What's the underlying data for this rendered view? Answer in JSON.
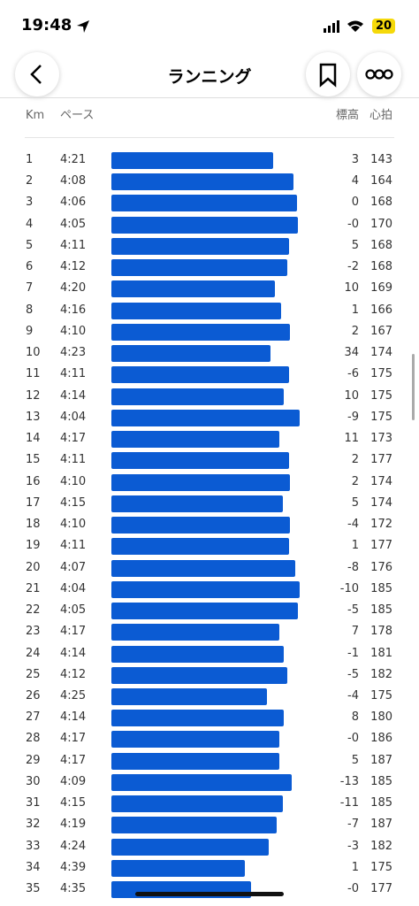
{
  "status_bar": {
    "time": "19:48",
    "battery": "20"
  },
  "header": {
    "title": "ランニング"
  },
  "splits": {
    "columns": [
      "Km",
      "ペース",
      "標高",
      "心拍"
    ],
    "rows": [
      [
        1,
        "4:21",
        "3",
        143
      ],
      [
        2,
        "4:08",
        "4",
        164
      ],
      [
        3,
        "4:06",
        "0",
        168
      ],
      [
        4,
        "4:05",
        "-0",
        170
      ],
      [
        5,
        "4:11",
        "5",
        168
      ],
      [
        6,
        "4:12",
        "-2",
        168
      ],
      [
        7,
        "4:20",
        "10",
        169
      ],
      [
        8,
        "4:16",
        "1",
        166
      ],
      [
        9,
        "4:10",
        "2",
        167
      ],
      [
        10,
        "4:23",
        "34",
        174
      ],
      [
        11,
        "4:11",
        "-6",
        175
      ],
      [
        12,
        "4:14",
        "10",
        175
      ],
      [
        13,
        "4:04",
        "-9",
        175
      ],
      [
        14,
        "4:17",
        "11",
        173
      ],
      [
        15,
        "4:11",
        "2",
        177
      ],
      [
        16,
        "4:10",
        "2",
        174
      ],
      [
        17,
        "4:15",
        "5",
        174
      ],
      [
        18,
        "4:10",
        "-4",
        172
      ],
      [
        19,
        "4:11",
        "1",
        177
      ],
      [
        20,
        "4:07",
        "-8",
        176
      ],
      [
        21,
        "4:04",
        "-10",
        185
      ],
      [
        22,
        "4:05",
        "-5",
        185
      ],
      [
        23,
        "4:17",
        "7",
        178
      ],
      [
        24,
        "4:14",
        "-1",
        181
      ],
      [
        25,
        "4:12",
        "-5",
        182
      ],
      [
        26,
        "4:25",
        "-4",
        175
      ],
      [
        27,
        "4:14",
        "8",
        180
      ],
      [
        28,
        "4:17",
        "-0",
        186
      ],
      [
        29,
        "4:17",
        "5",
        187
      ],
      [
        30,
        "4:09",
        "-13",
        185
      ],
      [
        31,
        "4:15",
        "-11",
        185
      ],
      [
        32,
        "4:19",
        "-7",
        187
      ],
      [
        33,
        "4:24",
        "-3",
        182
      ],
      [
        34,
        "4:39",
        "1",
        175
      ],
      [
        35,
        "4:35",
        "-0",
        177
      ]
    ]
  }
}
